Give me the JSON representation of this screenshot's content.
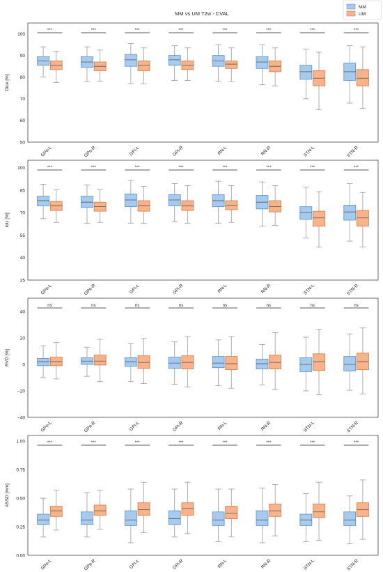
{
  "figure": {
    "title": "MM vs UM T2w - CVAL",
    "legend": [
      {
        "label": "MM",
        "color": "#a6cbef",
        "edge": "#5b8fc4"
      },
      {
        "label": "UM",
        "color": "#f9b38a",
        "edge": "#d07a48"
      }
    ]
  },
  "chart_data": [
    {
      "type": "box",
      "ylabel": "Dice [%]",
      "ylim": [
        50,
        105
      ],
      "yticks": [
        "50",
        "60",
        "70",
        "80",
        "90",
        "100"
      ],
      "grid": false,
      "categories": [
        "GPe-L",
        "GPe-R",
        "GPi-L",
        "GPi-R",
        "RN-L",
        "RN-R",
        "STN-L",
        "STN-R"
      ],
      "significance": [
        "***",
        "***",
        "***",
        "***",
        "***",
        "***",
        "***",
        "***"
      ],
      "series": [
        {
          "name": "MM",
          "boxes": [
            {
              "min": 80,
              "q1": 85.5,
              "median": 87.5,
              "q3": 89.5,
              "max": 94
            },
            {
              "min": 78,
              "q1": 84.5,
              "median": 87,
              "q3": 89.5,
              "max": 94
            },
            {
              "min": 77,
              "q1": 85,
              "median": 88,
              "q3": 90.5,
              "max": 95.5
            },
            {
              "min": 78.5,
              "q1": 85.5,
              "median": 88,
              "q3": 90,
              "max": 94.5
            },
            {
              "min": 78,
              "q1": 85,
              "median": 87.5,
              "q3": 90,
              "max": 95
            },
            {
              "min": 76.5,
              "q1": 84,
              "median": 87,
              "q3": 89.5,
              "max": 95
            },
            {
              "min": 70,
              "q1": 79,
              "median": 82.5,
              "q3": 85.5,
              "max": 93
            },
            {
              "min": 68,
              "q1": 78.5,
              "median": 82.5,
              "q3": 86.5,
              "max": 94.5
            }
          ]
        },
        {
          "name": "UM",
          "boxes": [
            {
              "min": 77.5,
              "q1": 83.5,
              "median": 85.5,
              "q3": 87.5,
              "max": 92
            },
            {
              "min": 78,
              "q1": 83,
              "median": 85,
              "q3": 87,
              "max": 92.5
            },
            {
              "min": 77,
              "q1": 83,
              "median": 85.5,
              "q3": 87.5,
              "max": 93.5
            },
            {
              "min": 78.5,
              "q1": 83.5,
              "median": 85.5,
              "q3": 87.5,
              "max": 93.5
            },
            {
              "min": 78,
              "q1": 84,
              "median": 86,
              "q3": 87.5,
              "max": 93.5
            },
            {
              "min": 76,
              "q1": 82.5,
              "median": 85,
              "q3": 87.5,
              "max": 93.5
            },
            {
              "min": 65,
              "q1": 76,
              "median": 79.5,
              "q3": 83,
              "max": 91.5
            },
            {
              "min": 65.5,
              "q1": 76,
              "median": 79.5,
              "q3": 83.5,
              "max": 94
            }
          ]
        }
      ]
    },
    {
      "type": "box",
      "ylabel": "IoU [%]",
      "ylim": [
        25,
        105
      ],
      "yticks": [
        "25",
        "40",
        "55",
        "70",
        "85",
        "100"
      ],
      "grid": false,
      "categories": [
        "GPe-L",
        "GPe-R",
        "GPi-L",
        "GPi-R",
        "RN-L",
        "RN-R",
        "STN-L",
        "STN-R"
      ],
      "significance": [
        "***",
        "***",
        "***",
        "***",
        "***",
        "***",
        "***",
        "***"
      ],
      "series": [
        {
          "name": "MM",
          "boxes": [
            {
              "min": 66,
              "q1": 74.5,
              "median": 78,
              "q3": 81,
              "max": 89
            },
            {
              "min": 63,
              "q1": 73.5,
              "median": 77,
              "q3": 81,
              "max": 88.5
            },
            {
              "min": 63,
              "q1": 74,
              "median": 78.5,
              "q3": 82.5,
              "max": 91.5
            },
            {
              "min": 64,
              "q1": 74.5,
              "median": 78.5,
              "q3": 82,
              "max": 89.5
            },
            {
              "min": 63,
              "q1": 74,
              "median": 78,
              "q3": 82,
              "max": 91
            },
            {
              "min": 61,
              "q1": 72.5,
              "median": 77,
              "q3": 81.5,
              "max": 90.5
            },
            {
              "min": 53,
              "q1": 65.5,
              "median": 70,
              "q3": 74,
              "max": 87
            },
            {
              "min": 51,
              "q1": 65,
              "median": 70.5,
              "q3": 75,
              "max": 89.5
            }
          ]
        },
        {
          "name": "UM",
          "boxes": [
            {
              "min": 63.5,
              "q1": 71.5,
              "median": 74.5,
              "q3": 77.5,
              "max": 85.5
            },
            {
              "min": 63.5,
              "q1": 71,
              "median": 74,
              "q3": 77,
              "max": 85.5
            },
            {
              "min": 63,
              "q1": 71,
              "median": 74.5,
              "q3": 78,
              "max": 87.5
            },
            {
              "min": 63,
              "q1": 71.5,
              "median": 74.5,
              "q3": 78,
              "max": 88
            },
            {
              "min": 63.5,
              "q1": 72,
              "median": 75,
              "q3": 78,
              "max": 88
            },
            {
              "min": 61.5,
              "q1": 70.5,
              "median": 74,
              "q3": 78,
              "max": 88
            },
            {
              "min": 47,
              "q1": 61,
              "median": 66.5,
              "q3": 71,
              "max": 84
            },
            {
              "min": 47,
              "q1": 61,
              "median": 66.5,
              "q3": 71.5,
              "max": 83.5
            }
          ]
        }
      ]
    },
    {
      "type": "box",
      "ylabel": "RVD [%]",
      "ylim": [
        -40,
        50
      ],
      "yticks": [
        "−40",
        "−20",
        "0",
        "20",
        "40"
      ],
      "ytickValues": [
        -40,
        -20,
        0,
        20,
        40
      ],
      "grid": false,
      "categories": [
        "GPe-L",
        "GPe-R",
        "GPi-L",
        "GPi-R",
        "RN-L",
        "RN-R",
        "STN-L",
        "STN-R"
      ],
      "significance": [
        "ns",
        "ns",
        "ns",
        "ns",
        "ns",
        "ns",
        "ns",
        "ns"
      ],
      "series": [
        {
          "name": "MM",
          "boxes": [
            {
              "min": -10,
              "q1": -1,
              "median": 2,
              "q3": 4.5,
              "max": 14
            },
            {
              "min": -9,
              "q1": 0,
              "median": 2.5,
              "q3": 5,
              "max": 13
            },
            {
              "min": -13,
              "q1": -1.5,
              "median": 2,
              "q3": 5,
              "max": 15.5
            },
            {
              "min": -15,
              "q1": -3,
              "median": 1,
              "q3": 5.5,
              "max": 17
            },
            {
              "min": -16,
              "q1": -2.5,
              "median": 1,
              "q3": 6,
              "max": 18.5
            },
            {
              "min": -15.5,
              "q1": -3.5,
              "median": 0.5,
              "q3": 4,
              "max": 15
            },
            {
              "min": -20,
              "q1": -5.5,
              "median": 0,
              "q3": 5,
              "max": 20.5
            },
            {
              "min": -19.5,
              "q1": -5,
              "median": 0,
              "q3": 6,
              "max": 23
            }
          ]
        },
        {
          "name": "UM",
          "boxes": [
            {
              "min": -11,
              "q1": -1,
              "median": 2,
              "q3": 5.5,
              "max": 16.5
            },
            {
              "min": -13,
              "q1": -0.5,
              "median": 2.5,
              "q3": 7,
              "max": 19
            },
            {
              "min": -14.5,
              "q1": -3,
              "median": 1.5,
              "q3": 6.5,
              "max": 19.5
            },
            {
              "min": -17,
              "q1": -3.5,
              "median": 1.5,
              "q3": 6.5,
              "max": 21
            },
            {
              "min": -18,
              "q1": -4,
              "median": 0.5,
              "q3": 6,
              "max": 21
            },
            {
              "min": -19,
              "q1": -3.5,
              "median": 1.5,
              "q3": 7,
              "max": 24
            },
            {
              "min": -23,
              "q1": -4.5,
              "median": 2,
              "q3": 8,
              "max": 26.5
            },
            {
              "min": -22.5,
              "q1": -4,
              "median": 2,
              "q3": 8.5,
              "max": 27.5
            }
          ]
        }
      ]
    },
    {
      "type": "box",
      "ylabel": "ASSD [mm]",
      "ylim": [
        0.0,
        1.05
      ],
      "yticks": [
        "0.00",
        "0.25",
        "0.50",
        "0.75",
        "1.00"
      ],
      "ytickValues": [
        0,
        0.25,
        0.5,
        0.75,
        1.0
      ],
      "grid": false,
      "categories": [
        "GPe-L",
        "GPe-R",
        "GPi-L",
        "GPi-R",
        "RN-L",
        "RN-R",
        "STN-L",
        "STN-R"
      ],
      "significance": [
        "***",
        "***",
        "***",
        "***",
        "***",
        "***",
        "***",
        "***"
      ],
      "series": [
        {
          "name": "MM",
          "boxes": [
            {
              "min": 0.16,
              "q1": 0.27,
              "median": 0.31,
              "q3": 0.36,
              "max": 0.5
            },
            {
              "min": 0.16,
              "q1": 0.27,
              "median": 0.31,
              "q3": 0.38,
              "max": 0.55
            },
            {
              "min": 0.11,
              "q1": 0.26,
              "median": 0.31,
              "q3": 0.39,
              "max": 0.58
            },
            {
              "min": 0.16,
              "q1": 0.27,
              "median": 0.32,
              "q3": 0.39,
              "max": 0.58
            },
            {
              "min": 0.12,
              "q1": 0.26,
              "median": 0.31,
              "q3": 0.38,
              "max": 0.58
            },
            {
              "min": 0.11,
              "q1": 0.26,
              "median": 0.31,
              "q3": 0.39,
              "max": 0.59
            },
            {
              "min": 0.12,
              "q1": 0.26,
              "median": 0.31,
              "q3": 0.36,
              "max": 0.54
            },
            {
              "min": 0.1,
              "q1": 0.26,
              "median": 0.31,
              "q3": 0.38,
              "max": 0.52
            }
          ]
        },
        {
          "name": "UM",
          "boxes": [
            {
              "min": 0.22,
              "q1": 0.34,
              "median": 0.39,
              "q3": 0.43,
              "max": 0.57
            },
            {
              "min": 0.23,
              "q1": 0.35,
              "median": 0.39,
              "q3": 0.44,
              "max": 0.57
            },
            {
              "min": 0.2,
              "q1": 0.35,
              "median": 0.4,
              "q3": 0.46,
              "max": 0.64
            },
            {
              "min": 0.19,
              "q1": 0.35,
              "median": 0.41,
              "q3": 0.46,
              "max": 0.64
            },
            {
              "min": 0.16,
              "q1": 0.32,
              "median": 0.37,
              "q3": 0.43,
              "max": 0.58
            },
            {
              "min": 0.17,
              "q1": 0.34,
              "median": 0.39,
              "q3": 0.45,
              "max": 0.62
            },
            {
              "min": 0.13,
              "q1": 0.33,
              "median": 0.38,
              "q3": 0.45,
              "max": 0.64
            },
            {
              "min": 0.14,
              "q1": 0.34,
              "median": 0.4,
              "q3": 0.46,
              "max": 0.66
            }
          ]
        }
      ]
    }
  ]
}
